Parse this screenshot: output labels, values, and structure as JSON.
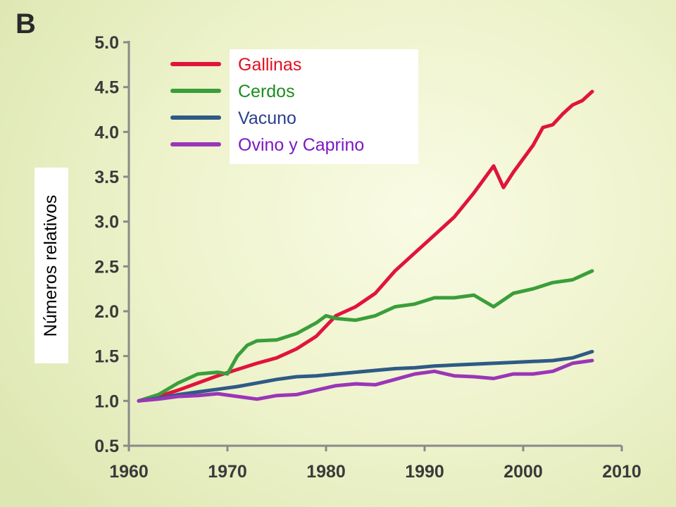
{
  "panel_letter": "B",
  "chart_data": {
    "type": "line",
    "title": "",
    "xlabel": "",
    "ylabel": "Números relativos",
    "xlim": [
      1960,
      2010
    ],
    "ylim": [
      0.5,
      5.0
    ],
    "x_ticks": [
      "1960",
      "1970",
      "1980",
      "1990",
      "2000",
      "2010"
    ],
    "y_ticks": [
      "0.5",
      "1.0",
      "1.5",
      "2.0",
      "2.5",
      "3.0",
      "3.5",
      "4.0",
      "4.5",
      "5.0"
    ],
    "grid": false,
    "legend_position": "top-left",
    "series": [
      {
        "name": "Gallinas",
        "color": "#e0143c",
        "label_color": "#e01020",
        "x": [
          1961,
          1963,
          1965,
          1967,
          1969,
          1971,
          1973,
          1975,
          1977,
          1979,
          1981,
          1983,
          1985,
          1987,
          1989,
          1991,
          1993,
          1995,
          1997,
          1998,
          1999,
          2001,
          2002,
          2003,
          2004,
          2005,
          2006,
          2007
        ],
        "y": [
          1.0,
          1.05,
          1.12,
          1.2,
          1.28,
          1.35,
          1.42,
          1.48,
          1.58,
          1.72,
          1.95,
          2.05,
          2.2,
          2.45,
          2.65,
          2.85,
          3.05,
          3.32,
          3.62,
          3.38,
          3.55,
          3.85,
          4.05,
          4.08,
          4.2,
          4.3,
          4.35,
          4.45
        ]
      },
      {
        "name": "Cerdos",
        "color": "#3a9e3a",
        "label_color": "#1e8c1e",
        "x": [
          1961,
          1963,
          1965,
          1967,
          1969,
          1970,
          1971,
          1972,
          1973,
          1975,
          1977,
          1979,
          1980,
          1981,
          1983,
          1985,
          1987,
          1989,
          1991,
          1993,
          1995,
          1997,
          1999,
          2001,
          2003,
          2005,
          2007
        ],
        "y": [
          1.0,
          1.07,
          1.2,
          1.3,
          1.32,
          1.3,
          1.5,
          1.62,
          1.67,
          1.68,
          1.75,
          1.87,
          1.95,
          1.92,
          1.9,
          1.95,
          2.05,
          2.08,
          2.15,
          2.15,
          2.18,
          2.05,
          2.2,
          2.25,
          2.32,
          2.35,
          2.45
        ]
      },
      {
        "name": "Vacuno",
        "color": "#2e5a86",
        "label_color": "#2a3f8e",
        "x": [
          1961,
          1963,
          1965,
          1967,
          1969,
          1971,
          1973,
          1975,
          1977,
          1979,
          1981,
          1983,
          1985,
          1987,
          1989,
          1991,
          1993,
          1995,
          1997,
          1999,
          2001,
          2003,
          2005,
          2007
        ],
        "y": [
          1.0,
          1.03,
          1.07,
          1.1,
          1.13,
          1.16,
          1.2,
          1.24,
          1.27,
          1.28,
          1.3,
          1.32,
          1.34,
          1.36,
          1.37,
          1.39,
          1.4,
          1.41,
          1.42,
          1.43,
          1.44,
          1.45,
          1.48,
          1.55
        ]
      },
      {
        "name": "Ovino y Caprino",
        "color": "#9a36b8",
        "label_color": "#7c18c4",
        "x": [
          1961,
          1963,
          1965,
          1967,
          1969,
          1971,
          1973,
          1975,
          1977,
          1979,
          1981,
          1983,
          1985,
          1987,
          1989,
          1991,
          1993,
          1995,
          1997,
          1999,
          2001,
          2003,
          2005,
          2007
        ],
        "y": [
          1.0,
          1.02,
          1.05,
          1.06,
          1.08,
          1.05,
          1.02,
          1.06,
          1.07,
          1.12,
          1.17,
          1.19,
          1.18,
          1.24,
          1.3,
          1.33,
          1.28,
          1.27,
          1.25,
          1.3,
          1.3,
          1.33,
          1.42,
          1.45
        ]
      }
    ]
  }
}
